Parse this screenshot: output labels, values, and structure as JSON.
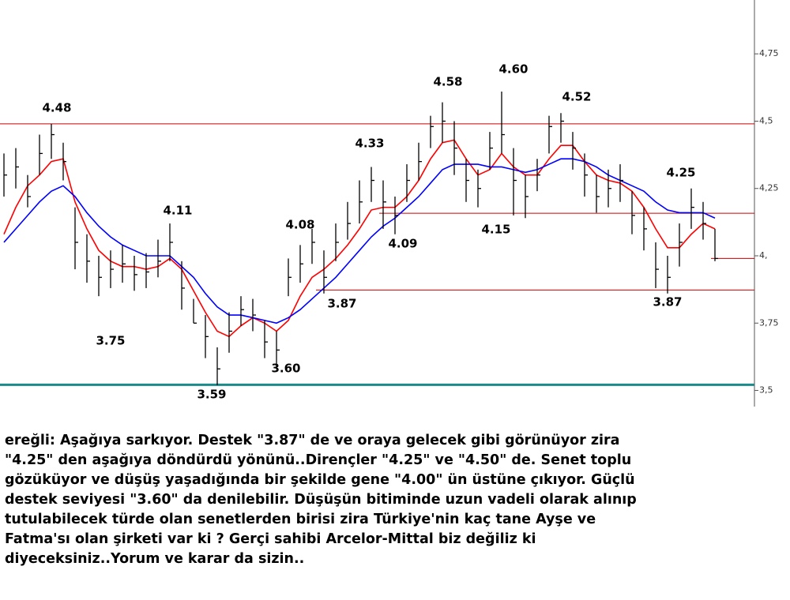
{
  "chart_data": {
    "type": "ohlc",
    "high": [
      4.38,
      4.4,
      4.3,
      4.45,
      4.49,
      4.42,
      4.18,
      4.08,
      4.0,
      4.02,
      4.04,
      4.0,
      4.01,
      4.06,
      4.12,
      3.98,
      3.84,
      3.78,
      3.66,
      3.79,
      3.85,
      3.84,
      3.76,
      3.72,
      3.99,
      4.04,
      4.1,
      4.02,
      4.12,
      4.2,
      4.28,
      4.33,
      4.28,
      4.22,
      4.34,
      4.42,
      4.52,
      4.57,
      4.5,
      4.36,
      4.32,
      4.46,
      4.61,
      4.4,
      4.3,
      4.36,
      4.52,
      4.53,
      4.46,
      4.38,
      4.3,
      4.32,
      4.34,
      4.24,
      4.18,
      4.05,
      4.0,
      4.12,
      4.25,
      4.2,
      4.1
    ],
    "low": [
      4.22,
      4.25,
      4.18,
      4.3,
      4.36,
      4.28,
      3.95,
      3.9,
      3.85,
      3.88,
      3.9,
      3.87,
      3.88,
      3.92,
      3.98,
      3.8,
      3.75,
      3.62,
      3.52,
      3.64,
      3.74,
      3.72,
      3.62,
      3.58,
      3.85,
      3.9,
      3.97,
      3.86,
      3.98,
      4.06,
      4.12,
      4.2,
      4.1,
      4.08,
      4.2,
      4.28,
      4.4,
      4.42,
      4.3,
      4.2,
      4.18,
      4.32,
      4.38,
      4.15,
      4.14,
      4.24,
      4.38,
      4.42,
      4.32,
      4.22,
      4.16,
      4.18,
      4.2,
      4.08,
      4.02,
      3.88,
      3.86,
      3.96,
      4.1,
      4.06,
      3.98
    ],
    "close": [
      4.3,
      4.33,
      4.22,
      4.38,
      4.45,
      4.35,
      4.05,
      3.98,
      3.92,
      3.95,
      3.97,
      3.93,
      3.94,
      3.98,
      4.05,
      3.88,
      3.75,
      3.7,
      3.58,
      3.72,
      3.8,
      3.78,
      3.68,
      3.65,
      3.92,
      3.97,
      4.05,
      3.92,
      4.05,
      4.12,
      4.2,
      4.28,
      4.2,
      4.15,
      4.28,
      4.35,
      4.48,
      4.5,
      4.4,
      4.28,
      4.25,
      4.4,
      4.45,
      4.28,
      4.22,
      4.3,
      4.48,
      4.5,
      4.4,
      4.3,
      4.22,
      4.25,
      4.28,
      4.15,
      4.1,
      3.95,
      3.92,
      4.05,
      4.18,
      4.12,
      3.99
    ],
    "color": "#000000",
    "series": [
      {
        "color": "#ff0000",
        "values": [
          4.08,
          4.18,
          4.26,
          4.3,
          4.35,
          4.36,
          4.2,
          4.1,
          4.02,
          3.98,
          3.96,
          3.96,
          3.95,
          3.96,
          3.99,
          3.95,
          3.87,
          3.79,
          3.72,
          3.7,
          3.74,
          3.77,
          3.75,
          3.72,
          3.76,
          3.85,
          3.92,
          3.95,
          3.99,
          4.04,
          4.1,
          4.17,
          4.18,
          4.18,
          4.22,
          4.28,
          4.36,
          4.42,
          4.43,
          4.36,
          4.3,
          4.32,
          4.38,
          4.33,
          4.3,
          4.3,
          4.36,
          4.41,
          4.41,
          4.35,
          4.3,
          4.28,
          4.27,
          4.24,
          4.18,
          4.1,
          4.03,
          4.03,
          4.08,
          4.12,
          4.1
        ]
      },
      {
        "color": "#0000ff",
        "values": [
          4.05,
          4.1,
          4.15,
          4.2,
          4.24,
          4.26,
          4.22,
          4.16,
          4.11,
          4.07,
          4.04,
          4.02,
          4.0,
          4.0,
          4.0,
          3.96,
          3.92,
          3.86,
          3.81,
          3.78,
          3.78,
          3.77,
          3.76,
          3.75,
          3.77,
          3.8,
          3.84,
          3.88,
          3.92,
          3.97,
          4.02,
          4.07,
          4.11,
          4.14,
          4.18,
          4.22,
          4.27,
          4.32,
          4.34,
          4.34,
          4.34,
          4.33,
          4.33,
          4.32,
          4.31,
          4.32,
          4.34,
          4.36,
          4.36,
          4.35,
          4.33,
          4.3,
          4.28,
          4.26,
          4.24,
          4.2,
          4.17,
          4.16,
          4.16,
          4.16,
          4.14
        ]
      }
    ],
    "levels": [
      {
        "value": 4.49,
        "color": "#cc0000"
      },
      {
        "value": 4.158,
        "color": "#cc0000"
      },
      {
        "value": 3.873,
        "color": "#cc0000"
      },
      {
        "value": 3.99,
        "color": "#cc0000"
      },
      {
        "value": 3.521,
        "color": "#1a8a8a"
      }
    ],
    "annotations": [
      "4.48",
      "4.11",
      "3.75",
      "3.59",
      "3.60",
      "4.08",
      "3.87",
      "4.33",
      "4.09",
      "4.58",
      "4.60",
      "4.52",
      "4.15",
      "4.25",
      "3.87"
    ],
    "ylim": [
      3.44,
      4.95
    ],
    "yticks": [
      {
        "value": 3.5,
        "label": "3,5"
      },
      {
        "value": 3.75,
        "label": "3,75"
      },
      {
        "value": 4,
        "label": "4,"
      },
      {
        "value": 4.25,
        "label": "4,25"
      },
      {
        "value": 4.5,
        "label": "4,5"
      },
      {
        "value": 4.75,
        "label": "4,75"
      }
    ],
    "axis_side": "right"
  },
  "text": {
    "lines": [
      "ereğli: Aşağıya sarkıyor. Destek \"3.87\" de ve oraya gelecek gibi görünüyor zira",
      "\"4.25\" den aşağıya döndürdü yönünü..Dirençler \"4.25\" ve \"4.50\" de. Senet toplu",
      "gözüküyor ve düşüş yaşadığında bir şekilde gene \"4.00\" ün üstüne çıkıyor. Güçlü",
      "destek seviyesi \"3.60\" da denilebilir. Düşüşün bitiminde uzun vadeli olarak alınıp",
      "tutulabilecek türde olan senetlerden birisi zira Türkiye'nin kaç tane Ayşe ve",
      "Fatma'sı olan şirketi var ki ? Gerçi sahibi Arcelor-Mittal biz değiliz ki",
      "diyeceksiniz..Yorum ve karar da sizin.."
    ]
  }
}
